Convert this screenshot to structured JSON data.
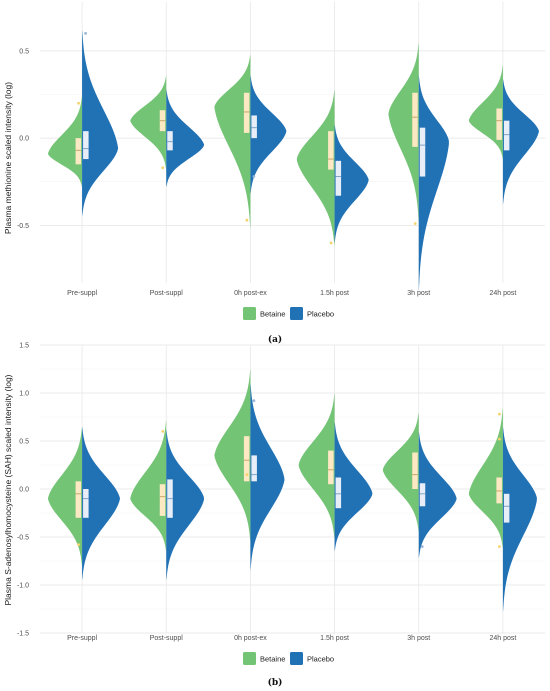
{
  "chart_data": [
    {
      "type": "violin",
      "panel_label": "(a)",
      "ylabel": "Plasma methionine scaled intensity (log)",
      "categories": [
        "Pre-suppl",
        "Post-suppl",
        "0h post-ex",
        "1.5h post",
        "3h post",
        "24h post"
      ],
      "yticks": [
        "0.5",
        "0.0",
        "-0.5"
      ],
      "ylim": [
        -0.83,
        0.78
      ],
      "grid": true,
      "legend_position": "bottom",
      "series": [
        {
          "name": "Betaine",
          "color": "#74c476",
          "side": "left",
          "groups": [
            {
              "min": -0.28,
              "q1": -0.15,
              "median": -0.07,
              "q3": 0.0,
              "max": 0.24,
              "mode": -0.09,
              "peak": 0.9,
              "outliers": [
                0.2
              ]
            },
            {
              "min": -0.18,
              "q1": 0.04,
              "median": 0.1,
              "q3": 0.16,
              "max": 0.36,
              "mode": 0.1,
              "peak": 0.95,
              "outliers": [
                -0.17
              ]
            },
            {
              "min": -0.52,
              "q1": 0.03,
              "median": 0.15,
              "q3": 0.26,
              "max": 0.48,
              "mode": 0.18,
              "peak": 0.95,
              "outliers": [
                -0.47
              ]
            },
            {
              "min": -0.62,
              "q1": -0.18,
              "median": -0.12,
              "q3": 0.04,
              "max": 0.28,
              "mode": -0.12,
              "peak": 1.0,
              "outliers": [
                -0.6
              ]
            },
            {
              "min": -0.48,
              "q1": -0.05,
              "median": 0.12,
              "q3": 0.26,
              "max": 0.55,
              "mode": 0.14,
              "peak": 0.8,
              "outliers": [
                -0.49
              ]
            },
            {
              "min": -0.12,
              "q1": -0.01,
              "median": 0.1,
              "q3": 0.17,
              "max": 0.42,
              "mode": 0.1,
              "peak": 0.9,
              "outliers": []
            }
          ]
        },
        {
          "name": "Placebo",
          "color": "#2171b5",
          "side": "right",
          "groups": [
            {
              "min": -0.45,
              "q1": -0.12,
              "median": -0.06,
              "q3": 0.04,
              "max": 0.62,
              "mode": -0.06,
              "peak": 0.95,
              "outliers": [
                0.6
              ]
            },
            {
              "min": -0.28,
              "q1": -0.07,
              "median": -0.02,
              "q3": 0.04,
              "max": 0.28,
              "mode": -0.04,
              "peak": 1.0,
              "outliers": []
            },
            {
              "min": -0.32,
              "q1": 0.0,
              "median": 0.06,
              "q3": 0.13,
              "max": 0.36,
              "mode": 0.04,
              "peak": 0.95,
              "outliers": [
                -0.22
              ]
            },
            {
              "min": -0.6,
              "q1": -0.33,
              "median": -0.22,
              "q3": -0.13,
              "max": 0.08,
              "mode": -0.24,
              "peak": 0.9,
              "outliers": []
            },
            {
              "min": -0.88,
              "q1": -0.22,
              "median": -0.04,
              "q3": 0.06,
              "max": 0.36,
              "mode": -0.02,
              "peak": 0.8,
              "outliers": []
            },
            {
              "min": -0.38,
              "q1": -0.07,
              "median": 0.02,
              "q3": 0.1,
              "max": 0.34,
              "mode": 0.04,
              "peak": 0.95,
              "outliers": []
            }
          ]
        }
      ]
    },
    {
      "type": "violin",
      "panel_label": "(b)",
      "ylabel": "Plasma S-adenosylhomocysteine (SAH) scaled intensity (log)",
      "categories": [
        "Pre-suppl",
        "Post-suppl",
        "0h post-ex",
        "1.5h post",
        "3h post",
        "24h post"
      ],
      "yticks": [
        "1.5",
        "1.0",
        "0.5",
        "0.0",
        "-0.5",
        "-1.0",
        "-1.5"
      ],
      "ylim": [
        -1.5,
        1.5
      ],
      "grid": true,
      "legend_position": "bottom",
      "series": [
        {
          "name": "Betaine",
          "color": "#74c476",
          "side": "left",
          "groups": [
            {
              "min": -0.8,
              "q1": -0.3,
              "median": -0.05,
              "q3": 0.08,
              "max": 0.65,
              "mode": -0.1,
              "peak": 0.9,
              "outliers": [
                -0.58
              ]
            },
            {
              "min": -0.65,
              "q1": -0.28,
              "median": -0.08,
              "q3": 0.05,
              "max": 0.72,
              "mode": -0.1,
              "peak": 0.95,
              "outliers": [
                0.6
              ]
            },
            {
              "min": -0.55,
              "q1": 0.08,
              "median": 0.3,
              "q3": 0.55,
              "max": 1.25,
              "mode": 0.35,
              "peak": 0.95,
              "outliers": [
                0.15
              ]
            },
            {
              "min": -0.52,
              "q1": 0.05,
              "median": 0.2,
              "q3": 0.4,
              "max": 1.0,
              "mode": 0.25,
              "peak": 0.95,
              "outliers": []
            },
            {
              "min": -0.45,
              "q1": 0.0,
              "median": 0.15,
              "q3": 0.38,
              "max": 0.8,
              "mode": 0.2,
              "peak": 0.95,
              "outliers": []
            },
            {
              "min": -0.62,
              "q1": -0.15,
              "median": -0.02,
              "q3": 0.12,
              "max": 0.85,
              "mode": -0.05,
              "peak": 0.9,
              "outliers": [
                0.78,
                0.52,
                -0.6
              ]
            }
          ]
        },
        {
          "name": "Placebo",
          "color": "#2171b5",
          "side": "right",
          "groups": [
            {
              "min": -0.95,
              "q1": -0.3,
              "median": -0.1,
              "q3": 0.0,
              "max": 0.65,
              "mode": -0.1,
              "peak": 1.0,
              "outliers": []
            },
            {
              "min": -0.95,
              "q1": -0.3,
              "median": -0.1,
              "q3": 0.1,
              "max": 0.62,
              "mode": -0.1,
              "peak": 1.0,
              "outliers": []
            },
            {
              "min": -0.85,
              "q1": 0.08,
              "median": 0.15,
              "q3": 0.35,
              "max": 1.1,
              "mode": 0.1,
              "peak": 0.9,
              "outliers": [
                0.92
              ]
            },
            {
              "min": -0.65,
              "q1": -0.2,
              "median": -0.05,
              "q3": 0.12,
              "max": 0.7,
              "mode": -0.05,
              "peak": 1.0,
              "outliers": []
            },
            {
              "min": -0.72,
              "q1": -0.18,
              "median": -0.05,
              "q3": 0.06,
              "max": 0.6,
              "mode": -0.1,
              "peak": 1.0,
              "outliers": [
                -0.6
              ]
            },
            {
              "min": -1.28,
              "q1": -0.35,
              "median": -0.18,
              "q3": -0.05,
              "max": 0.65,
              "mode": -0.1,
              "peak": 0.9,
              "outliers": []
            }
          ]
        }
      ]
    }
  ]
}
